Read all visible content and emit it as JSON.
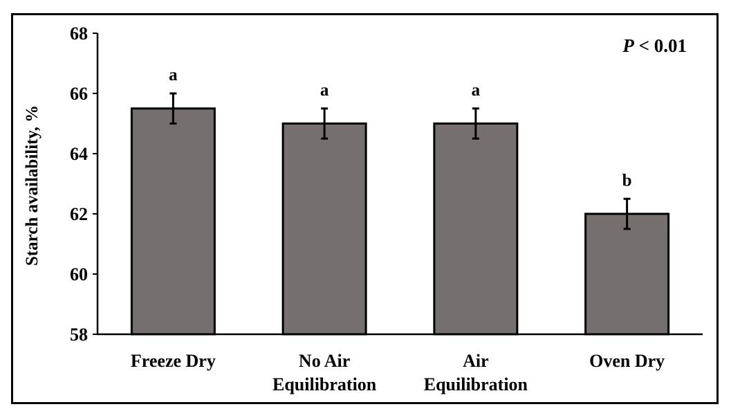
{
  "chart_data": {
    "type": "bar",
    "title": "",
    "xlabel": "",
    "ylabel": "Starch availability, %",
    "ylim": [
      58,
      68
    ],
    "yticks": [
      58,
      60,
      62,
      64,
      66,
      68
    ],
    "categories": [
      [
        "Freeze Dry"
      ],
      [
        "No Air",
        "Equilibration"
      ],
      [
        "Air",
        "Equilibration"
      ],
      [
        "Oven Dry"
      ]
    ],
    "values": [
      65.5,
      65.0,
      65.0,
      62.0
    ],
    "error": [
      0.5,
      0.5,
      0.5,
      0.5
    ],
    "significance_letters": [
      "a",
      "a",
      "a",
      "b"
    ],
    "annotation": {
      "italic": "P",
      "rest": " < 0.01"
    },
    "bar_color": "#756F6F",
    "grid": false,
    "legend": "none"
  }
}
